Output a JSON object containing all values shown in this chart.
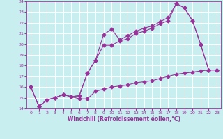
{
  "xlabel": "Windchill (Refroidissement éolien,°C)",
  "bg_color": "#c8eef0",
  "line_color": "#993399",
  "grid_color": "#ffffff",
  "xlim": [
    -0.5,
    23.5
  ],
  "ylim": [
    14,
    24
  ],
  "yticks": [
    14,
    15,
    16,
    17,
    18,
    19,
    20,
    21,
    22,
    23,
    24
  ],
  "xticks": [
    0,
    1,
    2,
    3,
    4,
    5,
    6,
    7,
    8,
    9,
    10,
    11,
    12,
    13,
    14,
    15,
    16,
    17,
    18,
    19,
    20,
    21,
    22,
    23
  ],
  "line1_x": [
    0,
    1,
    2,
    3,
    4,
    5,
    6,
    7,
    8,
    9,
    10,
    11,
    12,
    13,
    14,
    15,
    16,
    17,
    18,
    19,
    20,
    21,
    22,
    23
  ],
  "line1_y": [
    16,
    14.2,
    14.8,
    15.0,
    15.3,
    15.1,
    14.9,
    14.9,
    15.6,
    15.8,
    16.0,
    16.1,
    16.2,
    16.4,
    16.5,
    16.6,
    16.8,
    17.0,
    17.2,
    17.3,
    17.4,
    17.5,
    17.6,
    17.6
  ],
  "line2_x": [
    0,
    1,
    2,
    3,
    4,
    5,
    6,
    7,
    8,
    9,
    10,
    11,
    12,
    13,
    14,
    15,
    16,
    17,
    18,
    19,
    20,
    21,
    22,
    23
  ],
  "line2_y": [
    16,
    14.2,
    14.8,
    15.0,
    15.3,
    15.1,
    15.2,
    17.3,
    18.5,
    19.9,
    19.9,
    20.3,
    20.5,
    21.0,
    21.2,
    21.5,
    21.9,
    22.2,
    23.8,
    23.4,
    22.2,
    20.0,
    17.6,
    17.6
  ],
  "line3_x": [
    0,
    1,
    2,
    3,
    4,
    5,
    6,
    7,
    8,
    9,
    10,
    11,
    12,
    13,
    14,
    15,
    16,
    17,
    18,
    19,
    20,
    21,
    22,
    23
  ],
  "line3_y": [
    16,
    14.2,
    14.8,
    15.0,
    15.3,
    15.1,
    15.2,
    17.3,
    18.5,
    20.9,
    21.4,
    20.4,
    20.8,
    21.2,
    21.5,
    21.7,
    22.1,
    22.5,
    23.8,
    23.4,
    22.2,
    20.0,
    17.6,
    17.6
  ]
}
